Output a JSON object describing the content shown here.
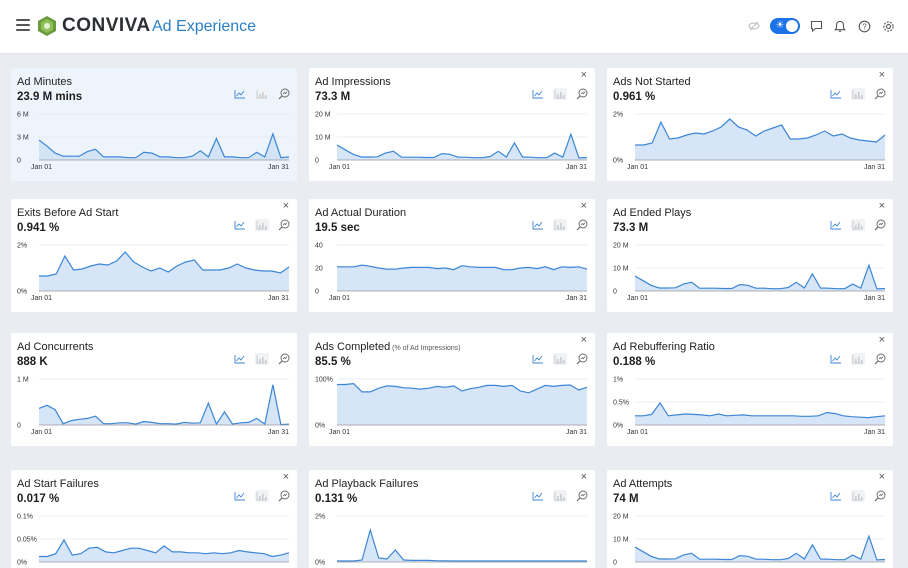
{
  "header": {
    "brand": "CONVIVA",
    "app_title": "Ad Experience"
  },
  "colors": {
    "accent": "#1a73e8",
    "line": "#3b86d6",
    "fill": "#cfe0f6",
    "highlight": "#eef4fc"
  },
  "cards": [
    {
      "title": "Ad Minutes",
      "subtitle": "",
      "value": "23.9 M mins",
      "close": false,
      "highlight": true,
      "y_ticks": [
        "6 M",
        "3 M",
        "0"
      ],
      "y_max": 6,
      "x_start": "Jan 01",
      "x_end": "Jan 31",
      "values": [
        2.6,
        1.8,
        0.9,
        0.5,
        0.5,
        0.5,
        1.1,
        1.4,
        0.4,
        0.4,
        0.4,
        0.3,
        0.3,
        1.0,
        0.9,
        0.4,
        0.4,
        0.3,
        0.3,
        0.5,
        1.2,
        0.4,
        2.8,
        0.4,
        0.4,
        0.3,
        0.3,
        1.0,
        0.4,
        3.4,
        0.3,
        0.4
      ]
    },
    {
      "title": "Ad Impressions",
      "subtitle": "",
      "value": "73.3 M",
      "close": true,
      "highlight": false,
      "y_ticks": [
        "20 M",
        "10 M",
        "0"
      ],
      "y_max": 20,
      "x_start": "Jan 01",
      "x_end": "Jan 31",
      "values": [
        6.5,
        4.5,
        2.5,
        1.3,
        1.3,
        1.4,
        3.0,
        3.8,
        1.2,
        1.2,
        1.2,
        1.1,
        1.1,
        2.8,
        2.5,
        1.2,
        1.2,
        1.0,
        1.0,
        1.5,
        3.8,
        1.3,
        7.5,
        1.3,
        1.2,
        1.0,
        1.0,
        3.0,
        1.2,
        11.2,
        0.9,
        1.1
      ]
    },
    {
      "title": "Ads Not Started",
      "subtitle": "",
      "value": "0.961 %",
      "close": true,
      "highlight": false,
      "y_ticks": [
        "2%",
        "0%"
      ],
      "y_max": 2.3,
      "x_start": "Jan 01",
      "x_end": "Jan 31",
      "values": [
        0.75,
        0.75,
        0.85,
        1.9,
        1.05,
        1.1,
        1.25,
        1.35,
        1.3,
        1.45,
        1.65,
        2.05,
        1.65,
        1.5,
        1.2,
        1.45,
        1.6,
        1.75,
        1.05,
        1.05,
        1.1,
        1.25,
        1.45,
        1.2,
        1.3,
        1.1,
        1.0,
        0.95,
        0.9,
        1.25
      ]
    },
    {
      "title": "Exits Before Ad Start",
      "subtitle": "",
      "value": "0.941 %",
      "close": true,
      "highlight": false,
      "y_ticks": [
        "2%",
        "0%"
      ],
      "y_max": 2.3,
      "x_start": "Jan 01",
      "x_end": "Jan 31",
      "values": [
        0.75,
        0.75,
        0.85,
        1.75,
        1.05,
        1.1,
        1.25,
        1.35,
        1.3,
        1.5,
        1.95,
        1.45,
        1.2,
        1.0,
        1.15,
        0.95,
        1.25,
        1.45,
        1.55,
        1.05,
        1.05,
        1.05,
        1.15,
        1.35,
        1.15,
        1.05,
        1.0,
        1.0,
        0.9,
        1.2
      ]
    },
    {
      "title": "Ad Actual Duration",
      "subtitle": "",
      "value": "19.5 sec",
      "close": true,
      "highlight": false,
      "y_ticks": [
        "40",
        "20",
        "0"
      ],
      "y_max": 40,
      "x_start": "Jan 01",
      "x_end": "Jan 31",
      "values": [
        21,
        21,
        21,
        22.5,
        21.5,
        20,
        19,
        19,
        20,
        20.5,
        20.5,
        20.5,
        19.5,
        20,
        18.5,
        22,
        21,
        20.5,
        20.5,
        20.5,
        18.5,
        18.5,
        20,
        20.5,
        19.5,
        21,
        18.5,
        21,
        20.5,
        21,
        19
      ]
    },
    {
      "title": "Ad Ended Plays",
      "subtitle": "",
      "value": "73.3 M",
      "close": true,
      "highlight": false,
      "y_ticks": [
        "20 M",
        "10 M",
        "0"
      ],
      "y_max": 20,
      "x_start": "Jan 01",
      "x_end": "Jan 31",
      "values": [
        6.5,
        4.5,
        2.5,
        1.3,
        1.3,
        1.4,
        3.0,
        3.8,
        1.2,
        1.2,
        1.2,
        1.1,
        1.1,
        2.8,
        2.5,
        1.2,
        1.2,
        1.0,
        1.0,
        1.5,
        3.8,
        1.3,
        7.5,
        1.3,
        1.2,
        1.0,
        1.0,
        3.0,
        1.2,
        11.2,
        0.9,
        1.1
      ]
    },
    {
      "title": "Ad Concurrents",
      "subtitle": "",
      "value": "888 K",
      "close": false,
      "highlight": false,
      "y_ticks": [
        "1 M",
        "0"
      ],
      "y_max": 1.05,
      "x_start": "Jan 01",
      "x_end": "Jan 31",
      "values": [
        0.38,
        0.45,
        0.35,
        0.03,
        0.1,
        0.13,
        0.15,
        0.2,
        0.03,
        0.03,
        0.05,
        0.05,
        0.02,
        0.08,
        0.06,
        0.03,
        0.03,
        0.02,
        0.06,
        0.04,
        0.05,
        0.5,
        0.02,
        0.3,
        0.02,
        0.05,
        0.06,
        0.15,
        0.02,
        0.92,
        0.01,
        0.02
      ]
    },
    {
      "title": "Ads Completed",
      "subtitle": "(% of Ad Impressions)",
      "value": "85.5 %",
      "close": true,
      "highlight": false,
      "y_ticks": [
        "100%",
        "0%"
      ],
      "y_max": 100,
      "x_start": "Jan 01",
      "x_end": "Jan 31",
      "values": [
        88,
        88,
        90,
        72,
        72,
        80,
        85,
        84,
        81,
        80,
        78,
        80,
        84,
        82,
        85,
        74,
        79,
        82,
        86,
        86,
        84,
        86,
        74,
        70,
        78,
        86,
        84,
        86,
        87,
        76,
        82
      ]
    },
    {
      "title": "Ad Rebuffering Ratio",
      "subtitle": "",
      "value": "0.188 %",
      "close": true,
      "highlight": false,
      "y_ticks": [
        "1%",
        "0.5%",
        "0%"
      ],
      "y_max": 1.0,
      "x_start": "Jan 01",
      "x_end": "Jan 31",
      "values": [
        0.2,
        0.2,
        0.23,
        0.48,
        0.2,
        0.22,
        0.24,
        0.23,
        0.22,
        0.2,
        0.24,
        0.2,
        0.21,
        0.22,
        0.2,
        0.2,
        0.2,
        0.2,
        0.2,
        0.2,
        0.19,
        0.19,
        0.2,
        0.27,
        0.25,
        0.2,
        0.18,
        0.17,
        0.16,
        0.18,
        0.2
      ]
    },
    {
      "title": "Ad Start Failures",
      "subtitle": "",
      "value": "0.017 %",
      "close": true,
      "highlight": false,
      "y_ticks": [
        "0.1%",
        "0.05%",
        "0%"
      ],
      "y_max": 0.1,
      "x_start": "",
      "x_end": "",
      "values": [
        0.012,
        0.012,
        0.018,
        0.048,
        0.015,
        0.018,
        0.03,
        0.032,
        0.022,
        0.02,
        0.025,
        0.03,
        0.03,
        0.025,
        0.02,
        0.035,
        0.022,
        0.022,
        0.02,
        0.02,
        0.018,
        0.02,
        0.018,
        0.02,
        0.025,
        0.022,
        0.02,
        0.018,
        0.012,
        0.015,
        0.02
      ]
    },
    {
      "title": "Ad Playback Failures",
      "subtitle": "",
      "value": "0.131 %",
      "close": true,
      "highlight": false,
      "y_ticks": [
        "2%",
        "0%"
      ],
      "y_max": 2.3,
      "x_start": "",
      "x_end": "",
      "values": [
        0.05,
        0.05,
        0.05,
        0.1,
        1.6,
        0.2,
        0.15,
        0.6,
        0.1,
        0.08,
        0.08,
        0.08,
        0.06,
        0.06,
        0.05,
        0.05,
        0.05,
        0.05,
        0.05,
        0.05,
        0.05,
        0.05,
        0.05,
        0.05,
        0.05,
        0.05,
        0.05,
        0.05,
        0.05,
        0.05,
        0.05
      ]
    },
    {
      "title": "Ad Attempts",
      "subtitle": "",
      "value": "74 M",
      "close": true,
      "highlight": false,
      "y_ticks": [
        "20 M",
        "10 M",
        "0"
      ],
      "y_max": 20,
      "x_start": "",
      "x_end": "",
      "values": [
        6.5,
        4.5,
        2.5,
        1.3,
        1.3,
        1.4,
        3.0,
        3.8,
        1.2,
        1.2,
        1.2,
        1.1,
        1.1,
        2.8,
        2.5,
        1.2,
        1.2,
        1.0,
        1.0,
        1.5,
        3.8,
        1.3,
        7.5,
        1.3,
        1.2,
        1.0,
        1.0,
        3.0,
        1.2,
        11.2,
        0.9,
        1.1
      ]
    }
  ]
}
